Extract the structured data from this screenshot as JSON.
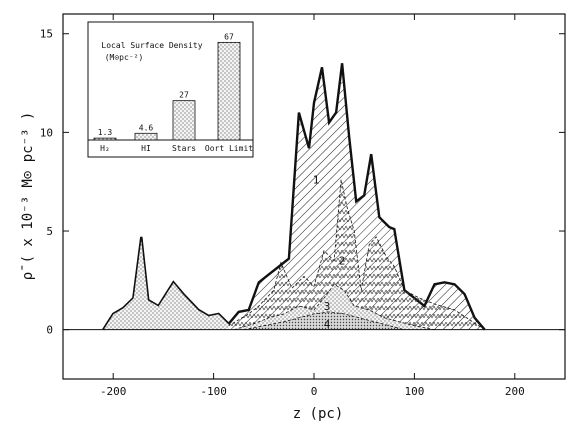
{
  "chart_data": [
    {
      "type": "area",
      "xlabel": "z (pc)",
      "ylabel": "ρ̄ ( x 10⁻³ M⊙ pc⁻³ )",
      "xlim": [
        -250,
        250
      ],
      "ylim": [
        -2.5,
        16
      ],
      "xticks": [
        -200,
        -100,
        0,
        100,
        200
      ],
      "yticks": [
        0,
        5,
        10,
        15
      ],
      "x_tick_labels": [
        "-200",
        "-100",
        "0",
        "100",
        "200"
      ],
      "y_tick_labels": [
        "0",
        "5",
        "10",
        "15"
      ],
      "grid": false,
      "series": [
        {
          "name": "1",
          "fill": "diagonal hatch",
          "x": [
            -210,
            -200,
            -190,
            -180,
            -172,
            -165,
            -155,
            -140,
            -130,
            -115,
            -105,
            -95,
            -85,
            -75,
            -65,
            -55,
            -45,
            -35,
            -25,
            -15,
            -5,
            0,
            8,
            15,
            22,
            28,
            35,
            42,
            50,
            57,
            65,
            75,
            80,
            90,
            100,
            110,
            120,
            130,
            140,
            150,
            160,
            170
          ],
          "y": [
            0,
            0.8,
            1.1,
            1.6,
            4.7,
            1.5,
            1.2,
            2.4,
            1.8,
            1.0,
            0.7,
            0.8,
            0.3,
            0.9,
            1.0,
            2.4,
            2.8,
            3.2,
            3.6,
            11.0,
            9.2,
            11.5,
            13.3,
            10.5,
            11.0,
            13.5,
            9.8,
            6.5,
            6.8,
            8.9,
            5.7,
            5.2,
            5.1,
            2.0,
            1.6,
            1.2,
            2.3,
            2.4,
            2.3,
            1.8,
            0.6,
            0.0
          ]
        },
        {
          "name": "2",
          "fill": "herringbone",
          "x": [
            -100,
            -85,
            -75,
            -65,
            -55,
            -40,
            -33,
            -22,
            -10,
            0,
            10,
            20,
            27,
            33,
            40,
            47,
            55,
            62,
            72,
            80,
            90,
            105,
            120,
            140,
            155,
            170
          ],
          "y": [
            0,
            0.2,
            0.5,
            0.8,
            1.2,
            2.0,
            3.4,
            2.1,
            2.7,
            2.2,
            4.0,
            3.5,
            7.6,
            6.2,
            5.0,
            2.0,
            4.3,
            4.7,
            3.7,
            3.2,
            2.0,
            1.6,
            1.3,
            1.0,
            0.5,
            0.0
          ]
        },
        {
          "name": "3",
          "fill": "stipple",
          "x": [
            -80,
            -60,
            -45,
            -30,
            -15,
            0,
            10,
            20,
            30,
            40,
            55,
            70,
            85,
            100,
            120
          ],
          "y": [
            0,
            0.3,
            0.6,
            0.8,
            1.2,
            1.0,
            1.6,
            2.3,
            2.0,
            1.2,
            1.0,
            0.6,
            0.4,
            0.2,
            0.0
          ]
        },
        {
          "name": "4",
          "fill": "dense",
          "x": [
            -70,
            -50,
            -30,
            -15,
            0,
            15,
            30,
            45,
            60,
            75,
            90
          ],
          "y": [
            0,
            0.2,
            0.4,
            0.6,
            0.8,
            0.9,
            0.8,
            0.6,
            0.4,
            0.2,
            0.0
          ]
        },
        {
          "name": "",
          "fill": "stipple",
          "x": [
            -210,
            -200,
            -190,
            -180,
            -172,
            -165,
            -155,
            -140,
            -130,
            -115,
            -105,
            -95,
            -85
          ],
          "y": [
            0,
            0.8,
            1.1,
            1.6,
            4.7,
            1.5,
            1.2,
            2.4,
            1.8,
            1.0,
            0.7,
            0.8,
            0.3
          ]
        }
      ],
      "curve_labels": [
        {
          "text": "1",
          "x": 2,
          "y": 7.6
        },
        {
          "text": "2",
          "x": 28,
          "y": 3.5
        },
        {
          "text": "3",
          "x": 13,
          "y": 1.2
        },
        {
          "text": "4",
          "x": 13,
          "y": 0.3
        }
      ]
    },
    {
      "type": "bar",
      "title": "Local Surface Density",
      "subtitle": "(M⊙pc⁻²)",
      "categories": [
        "H₂",
        "HI",
        "Stars",
        "Oort Limit"
      ],
      "values": [
        1.3,
        4.6,
        27,
        67
      ],
      "value_labels": [
        "1.3",
        "4.6",
        "27",
        "67"
      ],
      "ylim": [
        0,
        70
      ]
    }
  ]
}
